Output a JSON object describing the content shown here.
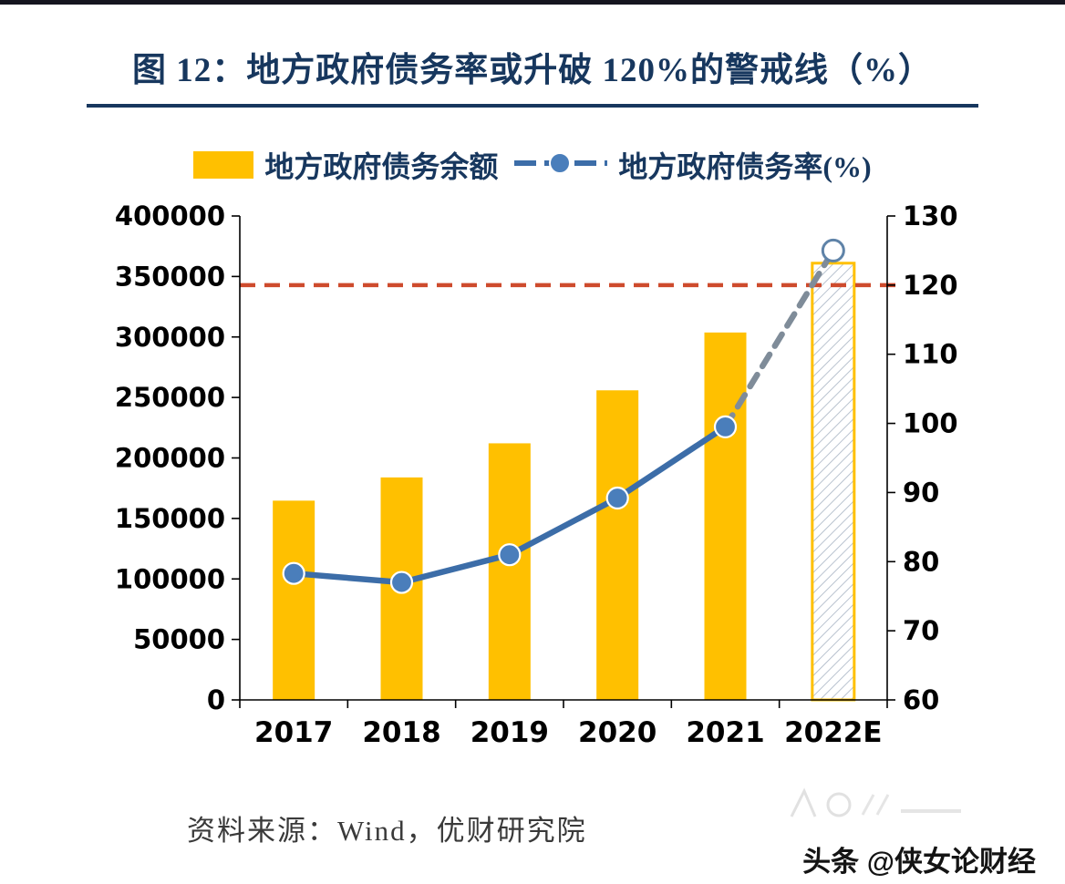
{
  "title": "图 12：地方政府债务率或升破 120%的警戒线（%）",
  "legend": {
    "bar_label": "地方政府债务余额",
    "line_label": "地方政府债务率(%)"
  },
  "source": "资料来源：Wind，优财研究院",
  "watermark": "头条 @侠女论财经",
  "colors": {
    "bar": "#FFC000",
    "line": "#3C6DA8",
    "marker_fill": "#4A7EBB",
    "marker_stroke": "#FFFFFF",
    "forecast_line": "#7F8C99",
    "forecast_marker_stroke": "#5F83A8",
    "threshold": "#CE4B2D",
    "hatch": "#A8B4C4",
    "axis": "#000000"
  },
  "chart_data": {
    "type": "combo",
    "title": "图 12：地方政府债务率或升破 120%的警戒线（%）",
    "categories": [
      "2017",
      "2018",
      "2019",
      "2020",
      "2021",
      "2022E"
    ],
    "series": [
      {
        "name": "地方政府债务余额",
        "type": "bar",
        "axis": "left",
        "values": [
          164700,
          183900,
          212100,
          255900,
          303700,
          361000
        ],
        "forecast_index": 5
      },
      {
        "name": "地方政府债务率(%)",
        "type": "line",
        "axis": "right",
        "values": [
          78.3,
          77.0,
          81.0,
          89.2,
          99.5,
          125.0
        ],
        "forecast_index": 5
      }
    ],
    "left_axis": {
      "min": 0,
      "max": 400000,
      "step": 50000
    },
    "right_axis": {
      "min": 60,
      "max": 130,
      "step": 10
    },
    "threshold": {
      "value": 120,
      "axis": "right",
      "style": "dashed"
    },
    "grid": false,
    "legend_position": "top"
  }
}
